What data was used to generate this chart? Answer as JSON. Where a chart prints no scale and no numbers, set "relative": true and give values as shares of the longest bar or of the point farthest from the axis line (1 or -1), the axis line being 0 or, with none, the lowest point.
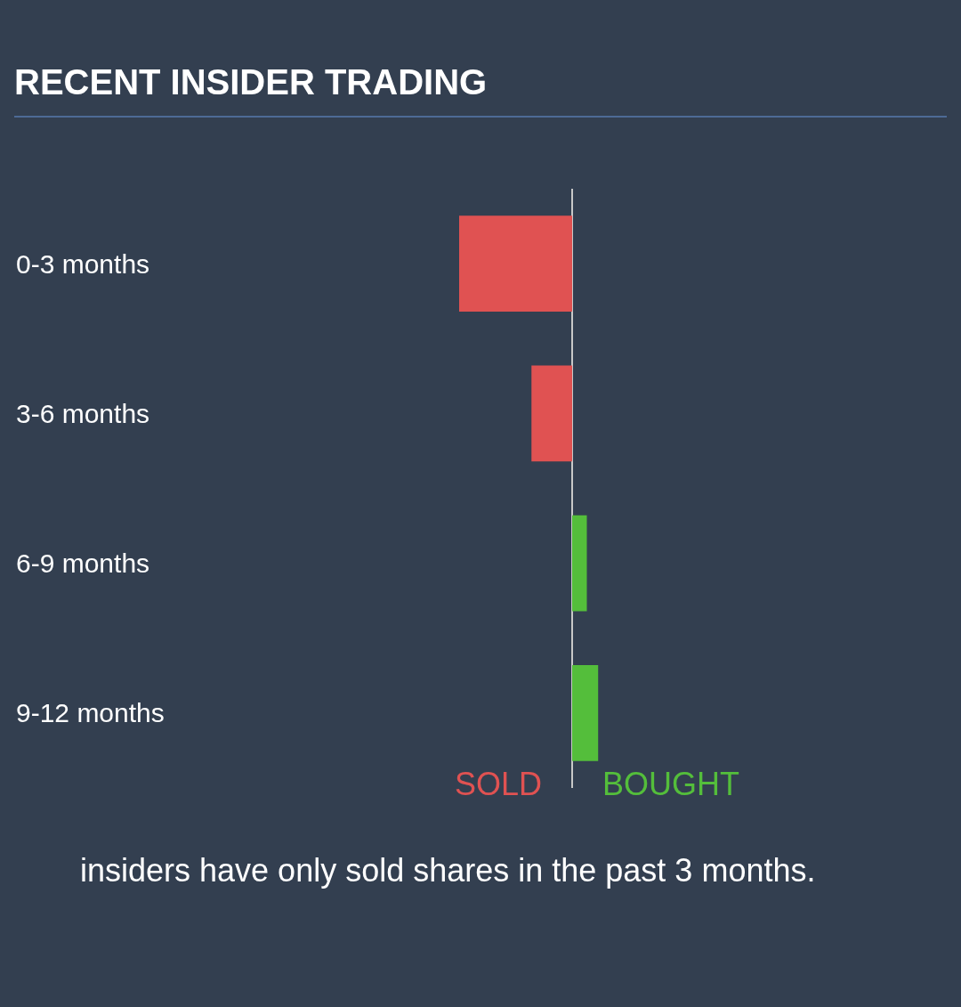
{
  "chart_data": {
    "type": "bar",
    "orientation": "horizontal",
    "relative": true,
    "title": "RECENT INSIDER TRADING",
    "categories": [
      "0-3 months",
      "3-6 months",
      "6-9 months",
      "9-12 months"
    ],
    "values": [
      -1,
      -0.36,
      0.13,
      0.23
    ],
    "colors": [
      "#e05252",
      "#e05252",
      "#54be3b",
      "#54be3b"
    ],
    "annotations": [
      "SOLD",
      "BOUGHT",
      "insiders have only sold shares in the past 3 months."
    ],
    "grid": false,
    "legend": false,
    "tick_labels": "y"
  }
}
